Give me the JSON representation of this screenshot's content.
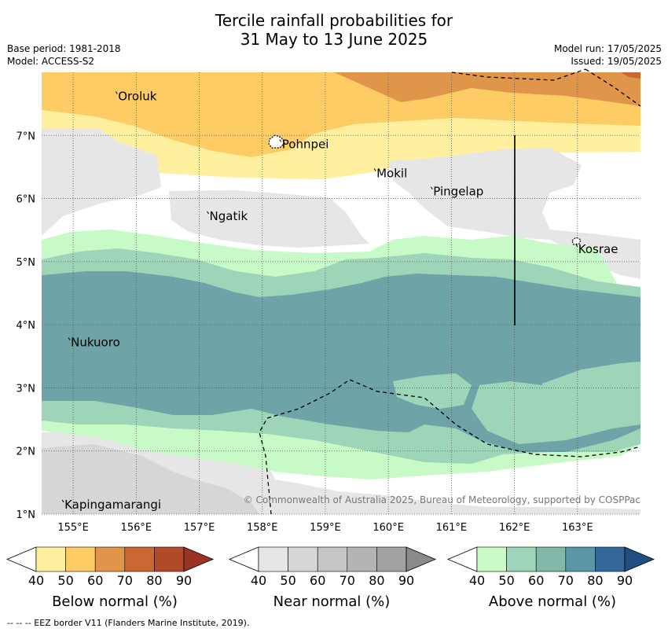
{
  "title_line1": "Tercile rainfall probabilities for",
  "title_line2": "31 May to 13 June 2025",
  "base_period": "Base period: 1981-2018",
  "model": "Model: ACCESS-S2",
  "model_run": "Model run: 17/05/2025",
  "issued": "Issued: 19/05/2025",
  "copyright": "© Commonwealth of Australia 2025, Bureau of Meteorology, supported by COSPPac",
  "footer": "-- -- -- EEZ border V11 (Flanders Marine Institute, 2019).",
  "places": [
    {
      "name": "Oroluk",
      "lon": 155.7,
      "lat": 7.62
    },
    {
      "name": "Pohnpei",
      "lon": 158.3,
      "lat": 6.86
    },
    {
      "name": "Mokil",
      "lon": 159.8,
      "lat": 6.4
    },
    {
      "name": "Pingelap",
      "lon": 160.7,
      "lat": 6.11
    },
    {
      "name": "Ngatik",
      "lon": 157.15,
      "lat": 5.72
    },
    {
      "name": "Kosrae",
      "lon": 163.0,
      "lat": 5.2
    },
    {
      "name": "Nukuoro",
      "lon": 154.95,
      "lat": 3.72
    },
    {
      "name": "Kapingamarangi",
      "lon": 154.85,
      "lat": 1.15
    }
  ],
  "axes": {
    "x_ticks": [
      "155°E",
      "156°E",
      "157°E",
      "158°E",
      "159°E",
      "160°E",
      "161°E",
      "162°E",
      "163°E"
    ],
    "x_values": [
      155,
      156,
      157,
      158,
      159,
      160,
      161,
      162,
      163
    ],
    "y_ticks": [
      "1°N",
      "2°N",
      "3°N",
      "4°N",
      "5°N",
      "6°N",
      "7°N"
    ],
    "y_values": [
      1,
      2,
      3,
      4,
      5,
      6,
      7
    ]
  },
  "legends": [
    {
      "title": "Below normal (%)",
      "labels": [
        "40",
        "50",
        "60",
        "70",
        "80",
        "90"
      ],
      "colors": [
        "#fff0a0",
        "#fecc64",
        "#e0964a",
        "#cc6633",
        "#b04a2a",
        "#9b3222"
      ]
    },
    {
      "title": "Near normal (%)",
      "labels": [
        "40",
        "50",
        "60",
        "70",
        "80",
        "90"
      ],
      "colors": [
        "#e6e6e6",
        "#d6d6d6",
        "#c6c6c6",
        "#b4b4b4",
        "#a2a2a2",
        "#8a8a8a"
      ]
    },
    {
      "title": "Above normal (%)",
      "labels": [
        "40",
        "50",
        "60",
        "70",
        "80",
        "90"
      ],
      "colors": [
        "#c8fac8",
        "#9ed4b8",
        "#82b8aa",
        "#5a96a6",
        "#336699",
        "#1f4f82"
      ]
    }
  ],
  "colors": {
    "below40": "#fff0a0",
    "below50": "#fecc64",
    "below60": "#e0964a",
    "below70": "#cc6633",
    "near40": "#e6e6e6",
    "near50": "#d6d6d6",
    "above40": "#c8fac8",
    "above50": "#9ed4b8",
    "above60": "#6ea4a8"
  }
}
